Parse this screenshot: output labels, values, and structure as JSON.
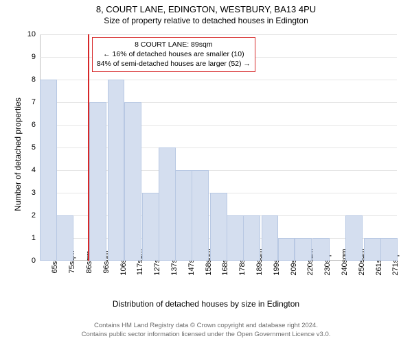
{
  "title_main": "8, COURT LANE, EDINGTON, WESTBURY, BA13 4PU",
  "title_sub": "Size of property relative to detached houses in Edington",
  "ylabel": "Number of detached properties",
  "xlabel": "Distribution of detached houses by size in Edington",
  "chart": {
    "type": "histogram",
    "background_color": "#ffffff",
    "grid_color": "#e5e5e5",
    "axis_color": "#bfbfbf",
    "bar_fill": "#d4deef",
    "bar_border": "#b8c8e3",
    "marker_color": "#d62728",
    "callout_border": "#d62728",
    "ylim": [
      0,
      10
    ],
    "ytick_step": 1,
    "yticks": [
      0,
      1,
      2,
      3,
      4,
      5,
      6,
      7,
      8,
      9,
      10
    ],
    "xticks": [
      "65sqm",
      "75sqm",
      "86sqm",
      "96sqm",
      "106sqm",
      "117sqm",
      "127sqm",
      "137sqm",
      "147sqm",
      "158sqm",
      "168sqm",
      "178sqm",
      "189sqm",
      "199sqm",
      "209sqm",
      "220sqm",
      "230sqm",
      "240sqm",
      "250sqm",
      "261sqm",
      "271sqm"
    ],
    "x_min": 60,
    "x_max": 276,
    "bin_width": 10.3,
    "bars": [
      {
        "x": 60,
        "h": 8
      },
      {
        "x": 70,
        "h": 2
      },
      {
        "x": 80,
        "h": 0
      },
      {
        "x": 90,
        "h": 7
      },
      {
        "x": 101,
        "h": 8
      },
      {
        "x": 111,
        "h": 7
      },
      {
        "x": 122,
        "h": 3
      },
      {
        "x": 132,
        "h": 5
      },
      {
        "x": 142,
        "h": 4
      },
      {
        "x": 152,
        "h": 4
      },
      {
        "x": 163,
        "h": 3
      },
      {
        "x": 173,
        "h": 2
      },
      {
        "x": 183,
        "h": 2
      },
      {
        "x": 194,
        "h": 2
      },
      {
        "x": 204,
        "h": 1
      },
      {
        "x": 214,
        "h": 1
      },
      {
        "x": 225,
        "h": 1
      },
      {
        "x": 235,
        "h": 0
      },
      {
        "x": 245,
        "h": 2
      },
      {
        "x": 256,
        "h": 1
      },
      {
        "x": 266,
        "h": 1
      }
    ],
    "marker_x": 89
  },
  "callout": {
    "line1": "8 COURT LANE: 89sqm",
    "line2": "← 16% of detached houses are smaller (10)",
    "line3": "84% of semi-detached houses are larger (52) →"
  },
  "credits": {
    "line1": "Contains HM Land Registry data © Crown copyright and database right 2024.",
    "line2": "Contains public sector information licensed under the Open Government Licence v3.0."
  },
  "font": {
    "title_fontsize": 13,
    "subtitle_fontsize": 12,
    "label_fontsize": 12,
    "tick_fontsize": 11,
    "callout_fontsize": 10.5,
    "credits_fontsize": 9.5
  }
}
